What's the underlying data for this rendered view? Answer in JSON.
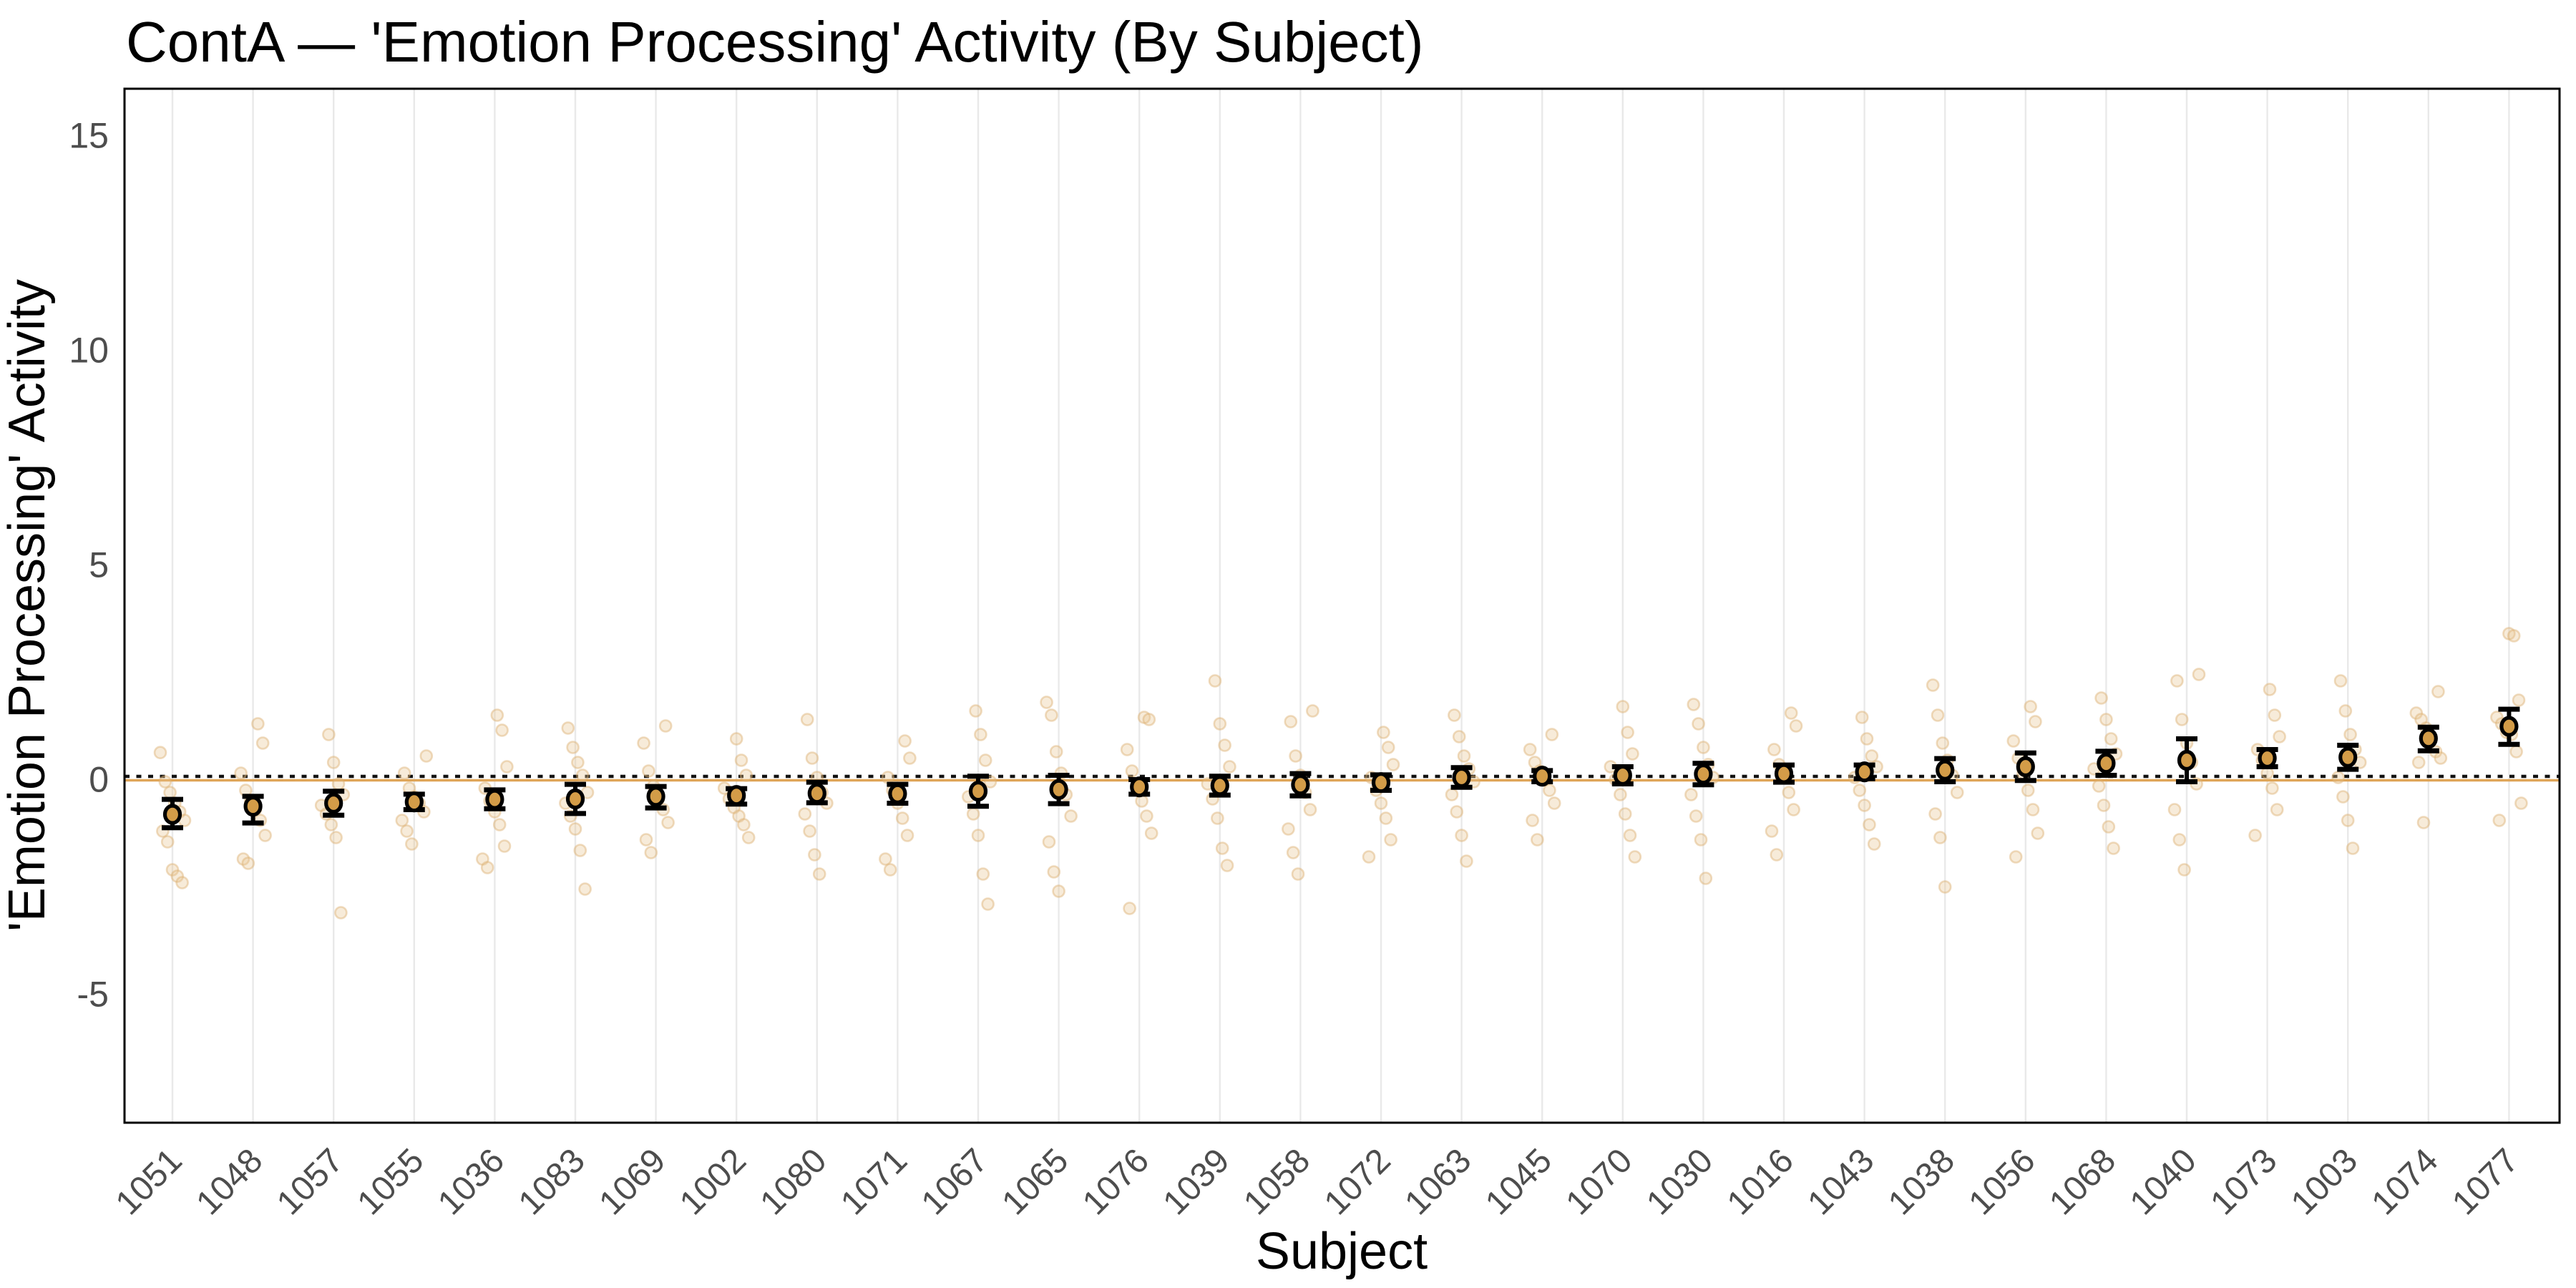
{
  "chart": {
    "title": "ContA — 'Emotion Processing' Activity (By Subject)",
    "xlabel": "Subject",
    "ylabel": "'Emotion Processing' Activity"
  },
  "chart_data": {
    "type": "scatter",
    "subtype": "point-estimates-with-error-bars-and-jittered-observations",
    "title": "ContA — 'Emotion Processing' Activity (By Subject)",
    "xlabel": "Subject",
    "ylabel": "'Emotion Processing' Activity",
    "y_ticks": [
      15,
      10,
      5,
      0,
      -5
    ],
    "ylim": [
      -8.0,
      16.1
    ],
    "grid": "vertical-only",
    "legend": "none",
    "reference_lines": [
      {
        "name": "zero-line-solid",
        "y": 0,
        "style": "solid",
        "color": "#DFA558"
      },
      {
        "name": "zero-line-dotted",
        "y": 0,
        "style": "dotted",
        "color": "#111111"
      }
    ],
    "categories": [
      "1051",
      "1048",
      "1057",
      "1055",
      "1036",
      "1083",
      "1069",
      "1002",
      "1080",
      "1071",
      "1067",
      "1065",
      "1076",
      "1039",
      "1058",
      "1072",
      "1063",
      "1045",
      "1070",
      "1030",
      "1016",
      "1043",
      "1038",
      "1056",
      "1068",
      "1040",
      "1073",
      "1003",
      "1074",
      "1077"
    ],
    "series": [
      {
        "name": "subject-mean",
        "type": "point-with-errorbar",
        "means": [
          -0.81,
          -0.62,
          -0.55,
          -0.52,
          -0.46,
          -0.45,
          -0.39,
          -0.37,
          -0.32,
          -0.33,
          -0.27,
          -0.23,
          -0.17,
          -0.14,
          -0.12,
          -0.07,
          0.05,
          0.08,
          0.1,
          0.13,
          0.14,
          0.18,
          0.22,
          0.3,
          0.38,
          0.45,
          0.5,
          0.52,
          0.96,
          1.24
        ],
        "ci_low": [
          -1.12,
          -1.01,
          -0.83,
          -0.7,
          -0.68,
          -0.79,
          -0.66,
          -0.57,
          -0.54,
          -0.55,
          -0.62,
          -0.56,
          -0.34,
          -0.36,
          -0.38,
          -0.25,
          -0.18,
          -0.05,
          -0.1,
          -0.12,
          -0.06,
          0.02,
          -0.05,
          -0.02,
          0.1,
          -0.05,
          0.3,
          0.24,
          0.67,
          0.82
        ],
        "ci_high": [
          -0.46,
          -0.39,
          -0.27,
          -0.34,
          -0.24,
          -0.11,
          -0.16,
          -0.21,
          -0.06,
          -0.11,
          0.08,
          0.1,
          0.0,
          0.08,
          0.14,
          0.11,
          0.28,
          0.21,
          0.3,
          0.38,
          0.34,
          0.34,
          0.49,
          0.62,
          0.66,
          0.95,
          0.7,
          0.8,
          1.22,
          1.64
        ]
      },
      {
        "name": "individual-observations",
        "type": "jitter",
        "points": [
          [
            0.63,
            -0.05,
            -0.3,
            -0.55,
            -0.75,
            -0.95,
            -1.2,
            -1.45,
            -2.1,
            -2.25,
            -2.4
          ],
          [
            1.3,
            0.85,
            0.15,
            -0.25,
            -0.5,
            -0.7,
            -0.95,
            -1.3,
            -1.85,
            -1.95
          ],
          [
            1.05,
            0.4,
            -0.1,
            -0.35,
            -0.6,
            -0.8,
            -1.05,
            -1.35,
            -3.1
          ],
          [
            0.55,
            0.15,
            -0.2,
            -0.4,
            -0.55,
            -0.75,
            -0.95,
            -1.2,
            -1.5
          ],
          [
            1.5,
            1.15,
            0.3,
            -0.2,
            -0.5,
            -0.75,
            -1.05,
            -1.55,
            -1.85,
            -2.05
          ],
          [
            1.2,
            0.75,
            0.4,
            0.1,
            -0.3,
            -0.55,
            -0.85,
            -1.15,
            -1.65,
            -2.55
          ],
          [
            1.25,
            0.85,
            0.2,
            -0.15,
            -0.45,
            -0.7,
            -1.0,
            -1.4,
            -1.7
          ],
          [
            0.95,
            0.45,
            0.1,
            -0.2,
            -0.45,
            -0.65,
            -0.85,
            -1.05,
            -1.35
          ],
          [
            1.4,
            0.5,
            0.05,
            -0.3,
            -0.55,
            -0.8,
            -1.2,
            -1.75,
            -2.2
          ],
          [
            0.9,
            0.5,
            0.05,
            -0.25,
            -0.55,
            -0.9,
            -1.3,
            -1.85,
            -2.1
          ],
          [
            1.6,
            1.05,
            0.45,
            -0.05,
            -0.4,
            -0.8,
            -1.3,
            -2.2,
            -2.9
          ],
          [
            1.8,
            1.5,
            0.65,
            0.15,
            -0.35,
            -0.85,
            -1.45,
            -2.15,
            -2.6
          ],
          [
            1.45,
            1.4,
            0.7,
            0.2,
            -0.15,
            -0.5,
            -0.85,
            -1.25,
            -3.0
          ],
          [
            2.3,
            1.3,
            0.8,
            0.3,
            -0.1,
            -0.45,
            -0.9,
            -1.6,
            -2.0
          ],
          [
            1.6,
            1.35,
            0.55,
            0.1,
            -0.3,
            -0.7,
            -1.15,
            -1.7,
            -2.2
          ],
          [
            1.1,
            0.75,
            0.35,
            0.05,
            -0.25,
            -0.55,
            -0.9,
            -1.4,
            -1.8
          ],
          [
            1.5,
            1.0,
            0.55,
            0.25,
            -0.05,
            -0.35,
            -0.75,
            -1.3,
            -1.9
          ],
          [
            1.05,
            0.7,
            0.4,
            0.2,
            0.0,
            -0.25,
            -0.55,
            -0.95,
            -1.4
          ],
          [
            1.7,
            1.1,
            0.6,
            0.3,
            0.0,
            -0.35,
            -0.8,
            -1.3,
            -1.8
          ],
          [
            1.75,
            1.3,
            0.75,
            0.35,
            0.05,
            -0.35,
            -0.85,
            -1.4,
            -2.3
          ],
          [
            1.55,
            1.25,
            0.7,
            0.35,
            0.05,
            -0.3,
            -0.7,
            -1.2,
            -1.75
          ],
          [
            1.45,
            0.95,
            0.55,
            0.3,
            0.05,
            -0.25,
            -0.6,
            -1.05,
            -1.5
          ],
          [
            2.2,
            1.5,
            0.85,
            0.45,
            0.1,
            -0.3,
            -0.8,
            -1.35,
            -2.5
          ],
          [
            1.7,
            1.35,
            0.9,
            0.5,
            0.15,
            -0.25,
            -0.7,
            -1.25,
            -1.8
          ],
          [
            1.9,
            1.4,
            0.95,
            0.6,
            0.25,
            -0.15,
            -0.6,
            -1.1,
            -1.6
          ],
          [
            2.45,
            2.3,
            1.4,
            0.85,
            0.4,
            -0.1,
            -0.7,
            -1.4,
            -2.1
          ],
          [
            2.1,
            1.5,
            1.0,
            0.7,
            0.45,
            0.15,
            -0.2,
            -0.7,
            -1.3
          ],
          [
            2.3,
            1.6,
            1.05,
            0.7,
            0.4,
            0.05,
            -0.4,
            -0.95,
            -1.6
          ],
          [
            2.05,
            1.55,
            1.4,
            1.2,
            1.0,
            0.65,
            0.5,
            0.4,
            -1.0
          ],
          [
            3.4,
            3.35,
            1.85,
            1.45,
            1.3,
            1.1,
            1.05,
            0.65,
            -0.55,
            -0.95
          ]
        ]
      }
    ],
    "colors": {
      "point_fill": "#D39C48",
      "point_stroke": "#000000",
      "error_bar": "#000000",
      "scatter_fill": "#E8C490",
      "scatter_stroke": "#DCAF72",
      "zero_line_orange": "#DFA558",
      "zero_line_dotted": "#111111",
      "gridline": "#E9E9E9",
      "axis_text": "#4D4D4D",
      "panel_border": "#000000",
      "background": "#FFFFFF"
    }
  }
}
